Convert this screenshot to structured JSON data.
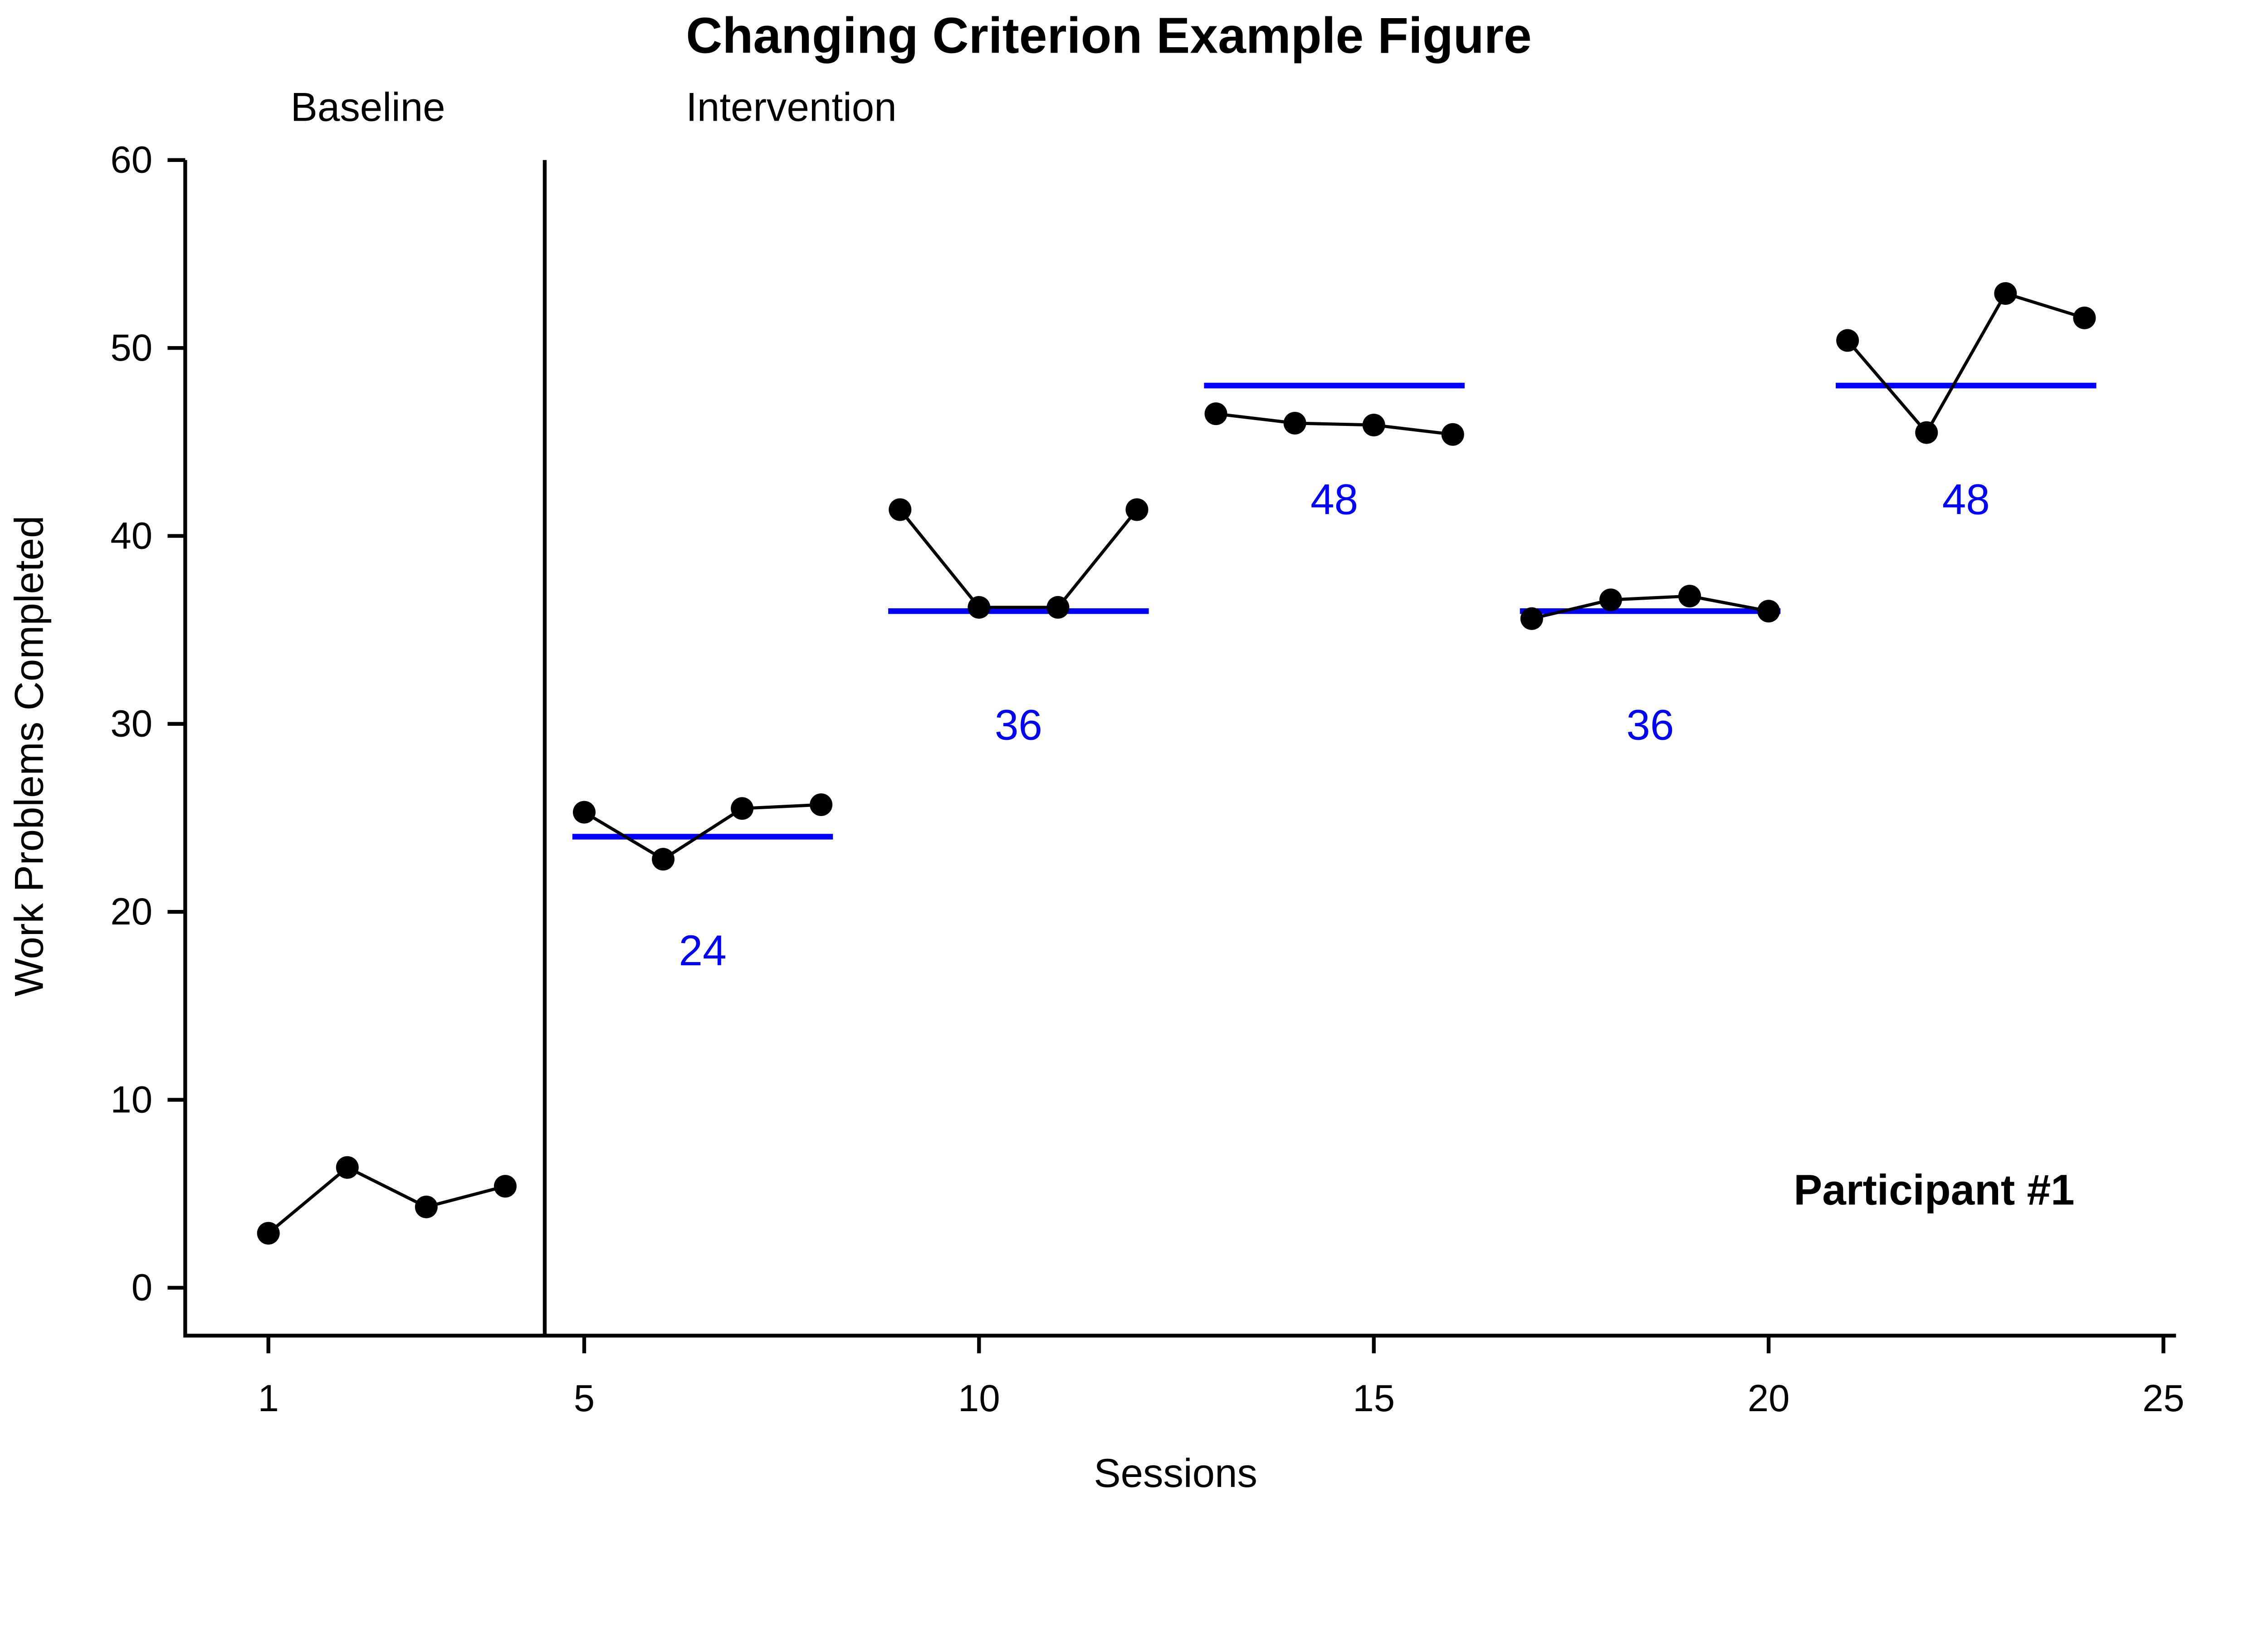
{
  "chart_data": {
    "type": "line",
    "title": "Changing Criterion Example Figure",
    "xlabel": "Sessions",
    "ylabel": "Work Problems Completed",
    "annotation": "Participant #1",
    "xlim": [
      1,
      25
    ],
    "ylim": [
      0,
      60
    ],
    "x_ticks": [
      1,
      5,
      10,
      15,
      20,
      25
    ],
    "y_ticks": [
      0,
      10,
      20,
      30,
      40,
      50,
      60
    ],
    "grid": false,
    "legend": false,
    "phase_labels": [
      "Baseline",
      "Intervention"
    ],
    "phase_change_line_x": 4.5,
    "point_color": "#000000",
    "line_color": "#000000",
    "criterion_color": "#0000ff",
    "series": [
      {
        "name": "baseline",
        "x": [
          1,
          2,
          3,
          4
        ],
        "y": [
          2.9,
          6.4,
          4.3,
          5.4
        ],
        "criterion": null
      },
      {
        "name": "intervention-phase-1",
        "x": [
          5,
          6,
          7,
          8
        ],
        "y": [
          25.3,
          22.8,
          25.5,
          25.7
        ],
        "criterion": 24
      },
      {
        "name": "intervention-phase-2",
        "x": [
          9,
          10,
          11,
          12
        ],
        "y": [
          41.4,
          36.2,
          36.2,
          41.4
        ],
        "criterion": 36
      },
      {
        "name": "intervention-phase-3",
        "x": [
          13,
          14,
          15,
          16
        ],
        "y": [
          46.5,
          46.0,
          45.9,
          45.4
        ],
        "criterion": 48
      },
      {
        "name": "intervention-phase-4",
        "x": [
          17,
          18,
          19,
          20
        ],
        "y": [
          35.6,
          36.6,
          36.8,
          36.0
        ],
        "criterion": 36
      },
      {
        "name": "intervention-phase-5",
        "x": [
          21,
          22,
          23,
          24
        ],
        "y": [
          50.4,
          45.5,
          52.9,
          51.6
        ],
        "criterion": 48
      }
    ]
  }
}
